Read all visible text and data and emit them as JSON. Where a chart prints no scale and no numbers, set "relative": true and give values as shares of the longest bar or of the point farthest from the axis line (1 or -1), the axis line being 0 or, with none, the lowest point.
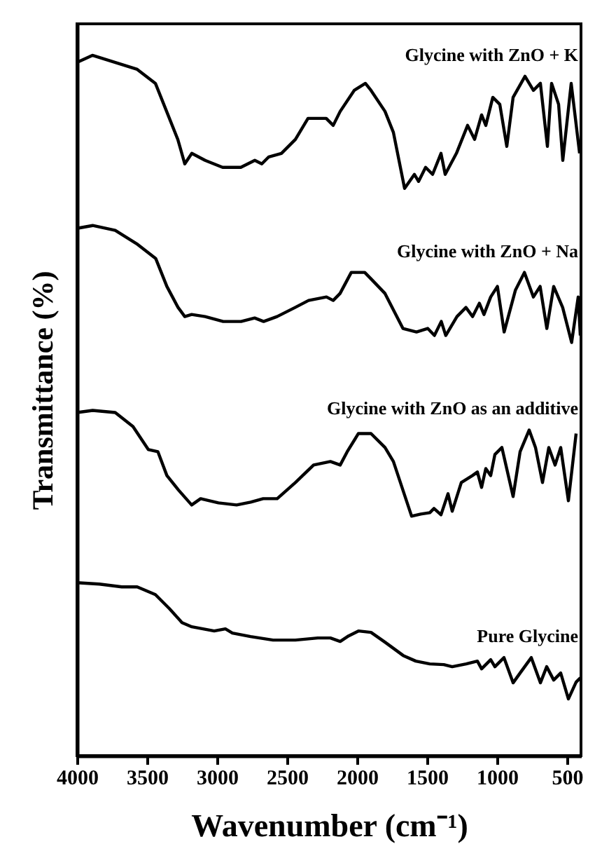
{
  "chart_data": {
    "type": "line",
    "relative": true,
    "xlabel": "Wavenumber (cm⁻¹)",
    "ylabel": "Transmittance (%)",
    "xlim": [
      4000,
      400
    ],
    "xticks": [
      4000,
      3500,
      3000,
      2500,
      2000,
      1500,
      1000,
      500
    ],
    "grid": false,
    "marker": "none",
    "line_style": "solid",
    "series": [
      {
        "name": "Glycine with ZnO + K",
        "color": "#000000",
        "x": [
          4000,
          3890,
          3730,
          3570,
          3440,
          3360,
          3280,
          3230,
          3180,
          3085,
          2960,
          2830,
          2730,
          2680,
          2630,
          2540,
          2440,
          2350,
          2220,
          2170,
          2120,
          2020,
          1940,
          1900,
          1800,
          1740,
          1660,
          1590,
          1560,
          1510,
          1460,
          1400,
          1370,
          1290,
          1210,
          1160,
          1110,
          1080,
          1030,
          980,
          930,
          885,
          800,
          740,
          690,
          640,
          610,
          560,
          530,
          470,
          410
        ],
        "values": [
          0.99,
          1.0,
          0.99,
          0.98,
          0.96,
          0.92,
          0.88,
          0.845,
          0.86,
          0.85,
          0.84,
          0.84,
          0.85,
          0.845,
          0.855,
          0.86,
          0.88,
          0.91,
          0.91,
          0.9,
          0.92,
          0.95,
          0.96,
          0.95,
          0.92,
          0.89,
          0.81,
          0.83,
          0.82,
          0.84,
          0.83,
          0.86,
          0.83,
          0.86,
          0.9,
          0.88,
          0.915,
          0.9,
          0.94,
          0.93,
          0.87,
          0.94,
          0.97,
          0.95,
          0.96,
          0.87,
          0.96,
          0.93,
          0.85,
          0.96,
          0.86
        ]
      },
      {
        "name": "Glycine with ZnO + Na",
        "color": "#000000",
        "x": [
          4000,
          3888,
          3727,
          3567,
          3438,
          3358,
          3278,
          3230,
          3181,
          3085,
          2956,
          2828,
          2731,
          2667,
          2571,
          2442,
          2346,
          2218,
          2170,
          2121,
          2041,
          1945,
          1896,
          1800,
          1672,
          1575,
          1495,
          1447,
          1398,
          1366,
          1286,
          1222,
          1174,
          1126,
          1093,
          1045,
          997,
          949,
          868,
          804,
          740,
          692,
          644,
          595,
          531,
          467,
          420,
          405
        ],
        "values": [
          0.753,
          0.757,
          0.75,
          0.73,
          0.71,
          0.67,
          0.64,
          0.627,
          0.63,
          0.627,
          0.62,
          0.62,
          0.625,
          0.62,
          0.627,
          0.64,
          0.65,
          0.655,
          0.65,
          0.66,
          0.69,
          0.69,
          0.68,
          0.66,
          0.61,
          0.605,
          0.61,
          0.6,
          0.62,
          0.6,
          0.627,
          0.64,
          0.627,
          0.646,
          0.63,
          0.655,
          0.67,
          0.605,
          0.665,
          0.69,
          0.655,
          0.67,
          0.61,
          0.67,
          0.64,
          0.59,
          0.655,
          0.6
        ]
      },
      {
        "name": "Glycine with ZnO as an additive",
        "color": "#000000",
        "x": [
          4000,
          3888,
          3727,
          3600,
          3490,
          3422,
          3358,
          3278,
          3181,
          3117,
          2990,
          2860,
          2760,
          2670,
          2570,
          2440,
          2310,
          2190,
          2120,
          2070,
          1990,
          1900,
          1800,
          1740,
          1610,
          1545,
          1480,
          1450,
          1400,
          1350,
          1320,
          1255,
          1175,
          1140,
          1110,
          1080,
          1045,
          1015,
          965,
          885,
          835,
          770,
          725,
          675,
          630,
          585,
          545,
          490,
          435
        ],
        "values": [
          0.49,
          0.493,
          0.49,
          0.47,
          0.437,
          0.434,
          0.4,
          0.38,
          0.358,
          0.367,
          0.361,
          0.358,
          0.362,
          0.367,
          0.367,
          0.39,
          0.415,
          0.42,
          0.415,
          0.434,
          0.46,
          0.46,
          0.44,
          0.42,
          0.342,
          0.345,
          0.347,
          0.353,
          0.344,
          0.374,
          0.349,
          0.39,
          0.4,
          0.405,
          0.383,
          0.41,
          0.4,
          0.43,
          0.44,
          0.37,
          0.434,
          0.465,
          0.44,
          0.39,
          0.44,
          0.415,
          0.44,
          0.364,
          0.46
        ]
      },
      {
        "name": "Pure Glycine",
        "color": "#000000",
        "x": [
          4000,
          3840,
          3680,
          3570,
          3440,
          3340,
          3250,
          3180,
          3020,
          2940,
          2890,
          2760,
          2600,
          2440,
          2280,
          2190,
          2120,
          2060,
          1990,
          1900,
          1800,
          1670,
          1580,
          1480,
          1380,
          1320,
          1220,
          1140,
          1110,
          1045,
          1015,
          950,
          885,
          835,
          755,
          690,
          645,
          595,
          545,
          490,
          435,
          405
        ],
        "values": [
          0.247,
          0.245,
          0.241,
          0.241,
          0.23,
          0.21,
          0.19,
          0.184,
          0.178,
          0.181,
          0.175,
          0.17,
          0.165,
          0.165,
          0.168,
          0.168,
          0.163,
          0.171,
          0.178,
          0.176,
          0.162,
          0.143,
          0.135,
          0.131,
          0.13,
          0.127,
          0.131,
          0.135,
          0.124,
          0.137,
          0.127,
          0.14,
          0.104,
          0.118,
          0.14,
          0.104,
          0.127,
          0.108,
          0.118,
          0.081,
          0.105,
          0.111
        ]
      }
    ]
  }
}
